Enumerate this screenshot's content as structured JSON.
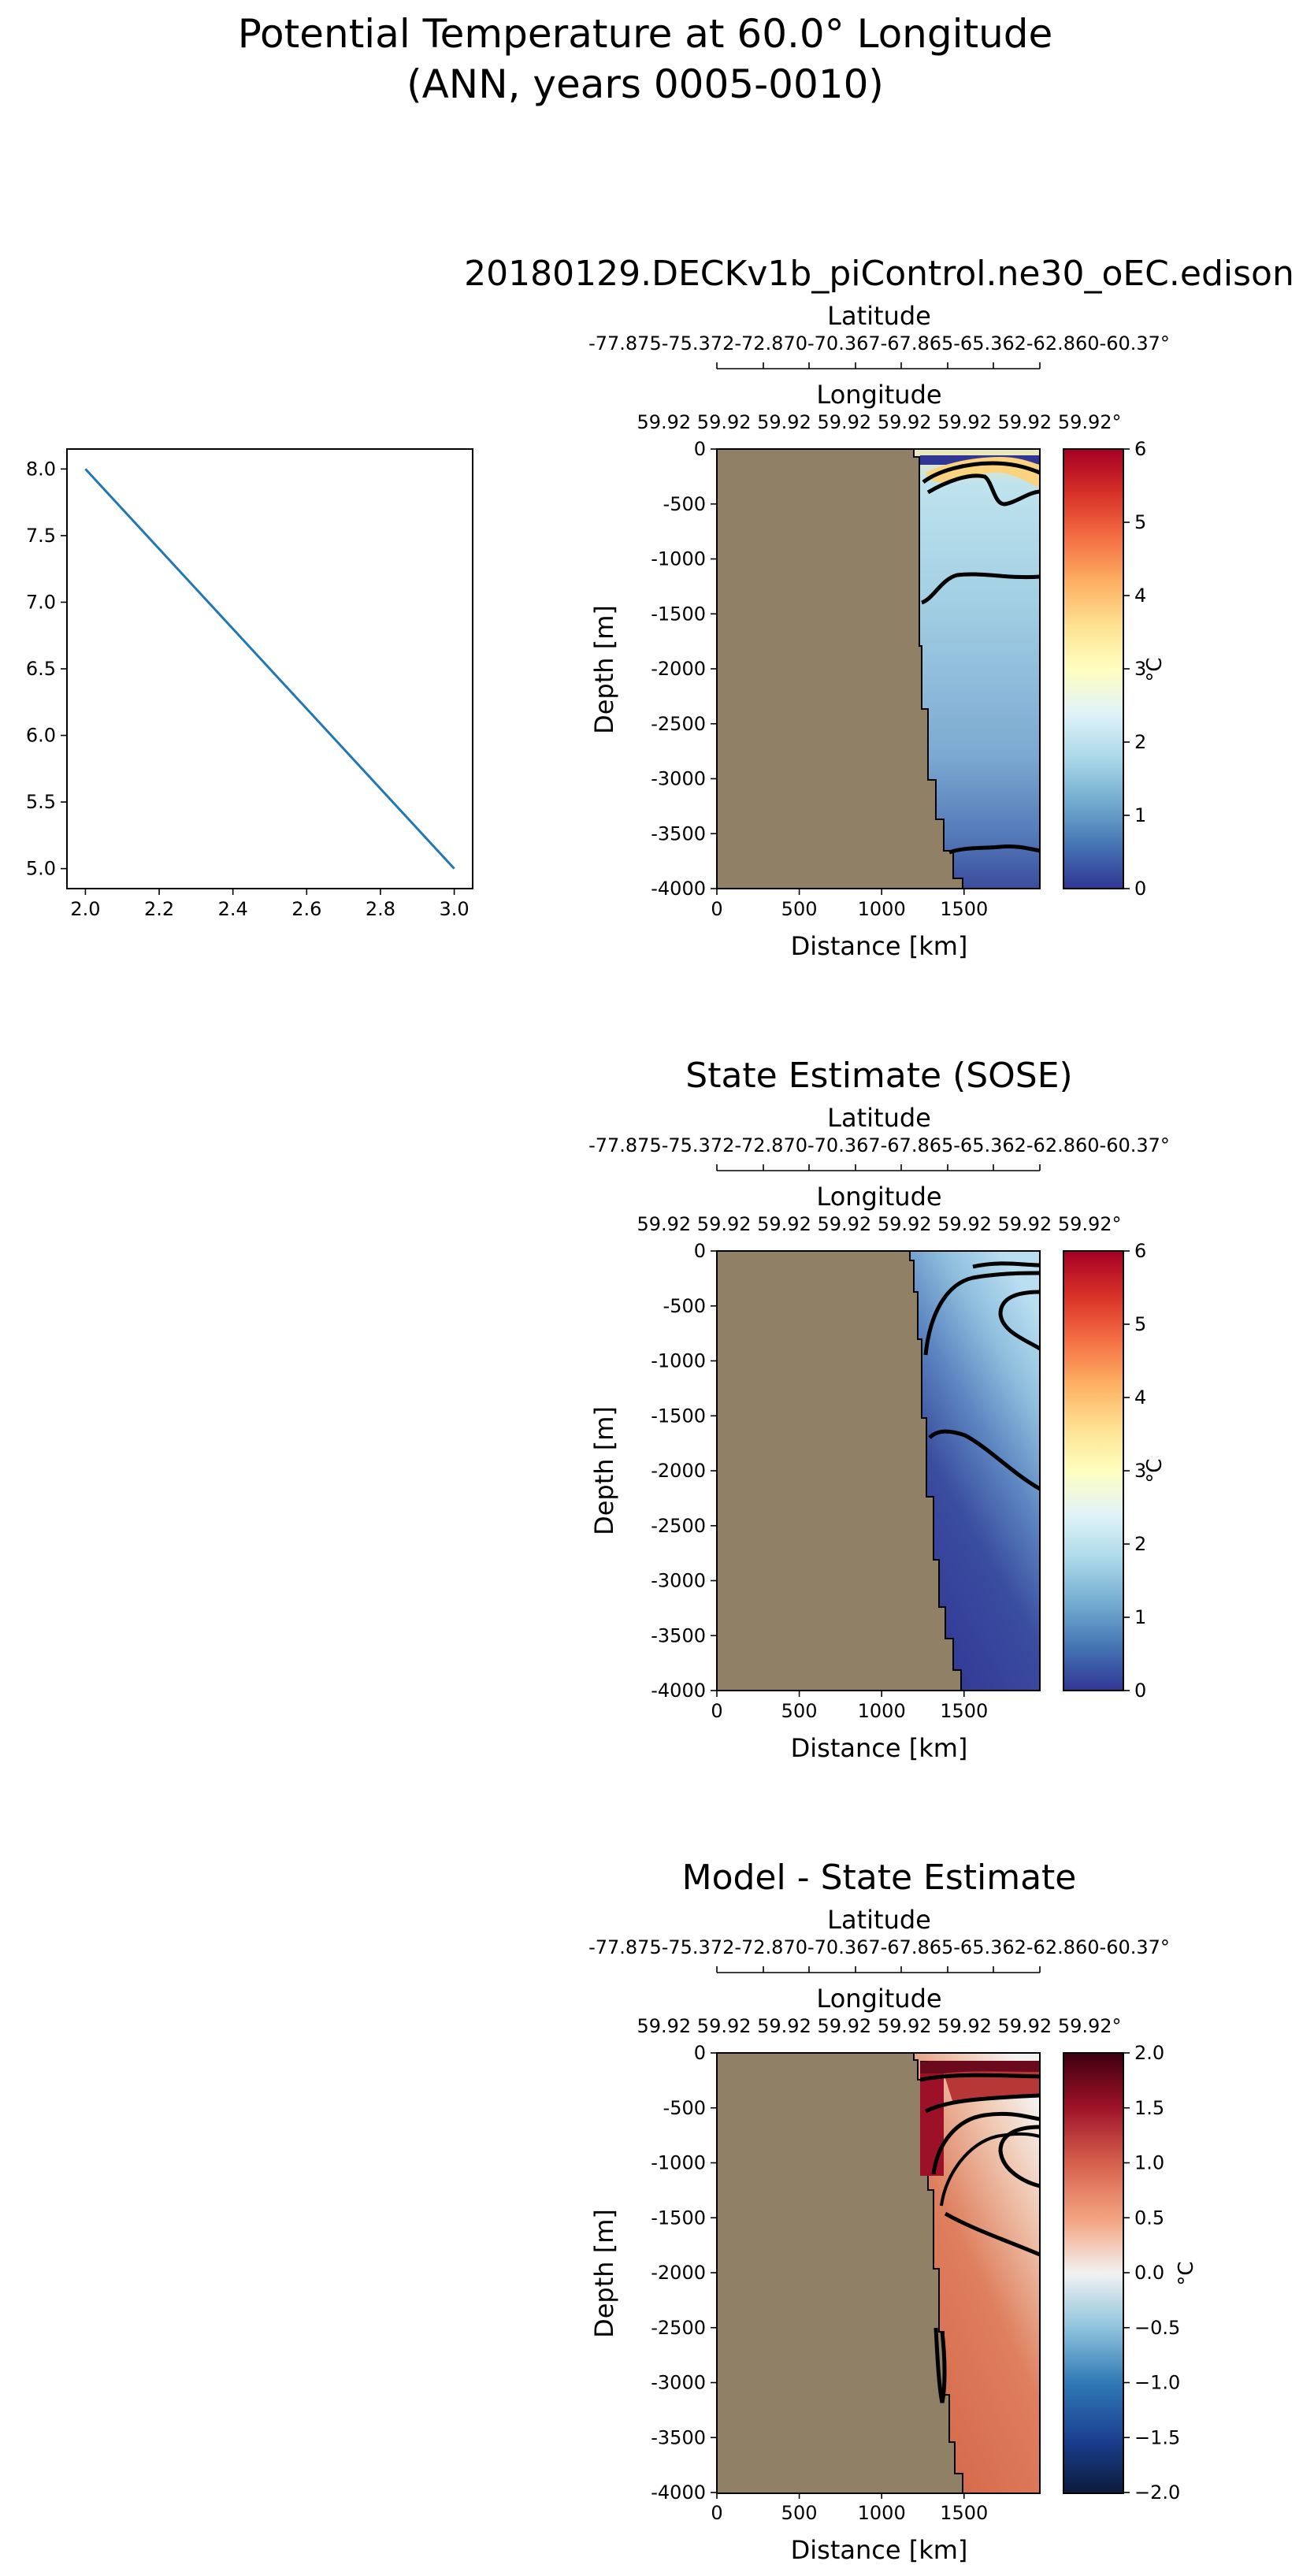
{
  "suptitle": {
    "line1": "Potential Temperature at 60.0° Longitude",
    "line2": "(ANN, years 0005-0010)"
  },
  "chart_data": [
    {
      "type": "line",
      "name": "line-chart",
      "x": [
        2.0,
        3.0
      ],
      "y": [
        8.0,
        5.0
      ],
      "xlim": [
        1.95,
        3.05
      ],
      "ylim": [
        4.85,
        8.15
      ],
      "xticks": [
        "2.0",
        "2.2",
        "2.4",
        "2.6",
        "2.8",
        "3.0"
      ],
      "yticks": [
        "5.0",
        "5.5",
        "6.0",
        "6.5",
        "7.0",
        "7.5",
        "8.0"
      ],
      "line_color": "#1f77b4"
    },
    {
      "type": "heatmap",
      "name": "model",
      "title": "20180129.DECKv1b_piControl.ne30_oEC.edison",
      "xlabel": "Distance [km]",
      "ylabel": "Depth [m]",
      "xticks": [
        "0",
        "500",
        "1000",
        "1500"
      ],
      "yticks": [
        "0",
        "-500",
        "-1000",
        "-1500",
        "-2000",
        "-2500",
        "-3000",
        "-3500",
        "-4000"
      ],
      "top_axis_1_label": "Latitude",
      "top_axis_1_ticks": "-77.875-75.372-72.870-70.367-67.865-65.362-62.860-60.37°",
      "top_axis_2_label": "Longitude",
      "top_axis_2_ticks": "59.92 59.92 59.92 59.92 59.92 59.92 59.92 59.92°",
      "colorbar_label": "°C",
      "colorbar_ticks": [
        "6",
        "5",
        "4",
        "3",
        "2",
        "1",
        "0"
      ],
      "colorbar_range": [
        0,
        6
      ],
      "colormap": "RdYlBu_r"
    },
    {
      "type": "heatmap",
      "name": "obs",
      "title": "State Estimate (SOSE)",
      "xlabel": "Distance [km]",
      "ylabel": "Depth [m]",
      "xticks": [
        "0",
        "500",
        "1000",
        "1500"
      ],
      "yticks": [
        "0",
        "-500",
        "-1000",
        "-1500",
        "-2000",
        "-2500",
        "-3000",
        "-3500",
        "-4000"
      ],
      "top_axis_1_label": "Latitude",
      "top_axis_1_ticks": "-77.875-75.372-72.870-70.367-67.865-65.362-62.860-60.37°",
      "top_axis_2_label": "Longitude",
      "top_axis_2_ticks": "59.92 59.92 59.92 59.92 59.92 59.92 59.92 59.92°",
      "colorbar_label": "°C",
      "colorbar_ticks": [
        "6",
        "5",
        "4",
        "3",
        "2",
        "1",
        "0"
      ],
      "colorbar_range": [
        0,
        6
      ],
      "colormap": "RdYlBu_r"
    },
    {
      "type": "heatmap",
      "name": "diff",
      "title": "Model - State Estimate",
      "xlabel": "Distance [km]",
      "ylabel": "Depth [m]",
      "xticks": [
        "0",
        "500",
        "1000",
        "1500"
      ],
      "yticks": [
        "0",
        "-500",
        "-1000",
        "-1500",
        "-2000",
        "-2500",
        "-3000",
        "-3500",
        "-4000"
      ],
      "top_axis_1_label": "Latitude",
      "top_axis_1_ticks": "-77.875-75.372-72.870-70.367-67.865-65.362-62.860-60.37°",
      "top_axis_2_label": "Longitude",
      "top_axis_2_ticks": "59.92 59.92 59.92 59.92 59.92 59.92 59.92 59.92°",
      "colorbar_label": "°C",
      "colorbar_ticks": [
        "2.0",
        "1.5",
        "1.0",
        "0.5",
        "0.0",
        "−0.5",
        "−1.0",
        "−1.5",
        "−2.0"
      ],
      "colorbar_range": [
        -2,
        2
      ],
      "colormap": "RdBu_r"
    }
  ]
}
